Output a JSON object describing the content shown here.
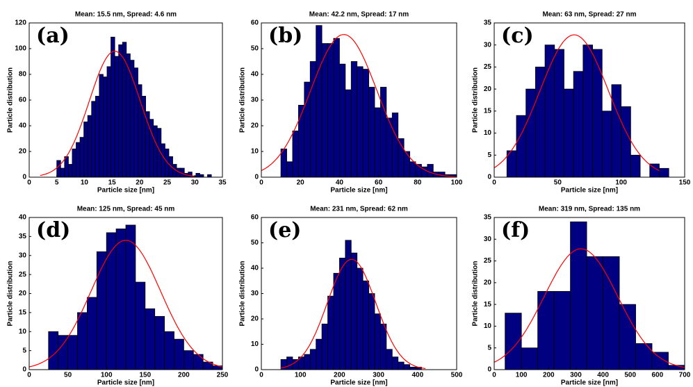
{
  "chart_data": [
    {
      "type": "histogram",
      "title": "Mean: 15.5 nm, Spread: 4.6 nm",
      "annotation": "(a)",
      "x_label": "Particle size [nm]",
      "y_label": "Particle distribution",
      "color": "#000080",
      "bins": [
        5,
        5.7,
        6.4,
        7.1,
        7.8,
        8.5,
        9.2,
        9.9,
        10.6,
        11.3,
        12,
        12.7,
        13.4,
        14.1,
        14.8,
        15.5,
        16.2,
        16.9,
        17.6,
        18.3,
        19,
        19.7,
        20.4,
        21.1,
        21.8,
        22.5,
        23.2,
        23.9,
        24.6,
        25.3,
        26,
        26.7,
        27.4,
        28.1,
        28.8,
        29.5,
        30.2,
        30.9,
        31.6,
        32.3,
        33
      ],
      "counts": [
        13,
        7,
        16,
        10,
        22,
        27,
        31,
        43,
        48,
        59,
        63,
        80,
        78,
        86,
        109,
        94,
        103,
        105,
        96,
        91,
        85,
        72,
        63,
        51,
        45,
        40,
        38,
        26,
        22,
        16,
        10,
        7,
        7,
        3,
        4,
        1,
        3,
        2,
        0,
        2
      ],
      "fit": {
        "mean": 15.5,
        "spread": 4.6,
        "peak": 98,
        "range": [
          2,
          30
        ],
        "color": "#ff0000"
      },
      "xlim": [
        0,
        35
      ],
      "xticks": [
        0,
        5,
        10,
        15,
        20,
        25,
        30,
        35
      ],
      "ylim": [
        0,
        120
      ],
      "yticks": [
        0,
        20,
        40,
        60,
        80,
        100,
        120
      ]
    },
    {
      "type": "histogram",
      "title": "Mean: 42.2 nm, Spread: 17 nm",
      "annotation": "(b)",
      "x_label": "Particle size [nm]",
      "y_label": "Particle distribution",
      "color": "#000080",
      "bins": [
        10,
        13,
        16,
        19,
        22,
        25,
        28,
        31,
        34,
        37,
        40,
        43,
        46,
        49,
        52,
        55,
        58,
        61,
        64,
        67,
        70,
        73,
        76,
        79,
        82,
        85,
        88,
        91,
        94,
        97,
        100
      ],
      "counts": [
        11,
        6,
        18,
        28,
        37,
        45,
        59,
        52,
        52,
        54,
        44,
        34,
        45,
        43,
        42,
        35,
        27,
        35,
        23,
        25,
        15,
        10,
        6,
        5,
        4,
        5,
        2,
        2,
        1,
        1
      ],
      "fit": {
        "mean": 42.2,
        "spread": 17,
        "peak": 55.5,
        "range": [
          0,
          100
        ],
        "color": "#ff0000"
      },
      "xlim": [
        0,
        100
      ],
      "xticks": [
        0,
        20,
        40,
        60,
        80,
        100
      ],
      "ylim": [
        0,
        60
      ],
      "yticks": [
        0,
        10,
        20,
        30,
        40,
        50,
        60
      ]
    },
    {
      "type": "histogram",
      "title": "Mean: 63 nm, Spread: 27 nm",
      "annotation": "(c)",
      "x_label": "Particle size [nm]",
      "y_label": "Particle distribution",
      "color": "#000080",
      "bins": [
        10,
        17.5,
        25,
        32.5,
        40,
        47.5,
        55,
        62.5,
        70,
        77.5,
        85,
        92.5,
        100,
        107.5,
        115,
        122.5,
        130,
        137.5
      ],
      "counts": [
        6,
        14,
        20,
        25,
        30,
        29,
        20,
        24,
        30,
        29,
        15,
        21,
        16,
        5,
        0,
        3,
        2
      ],
      "fit": {
        "mean": 63,
        "spread": 27,
        "peak": 32.3,
        "range": [
          0,
          130
        ],
        "color": "#ff0000"
      },
      "xlim": [
        0,
        150
      ],
      "xticks": [
        0,
        50,
        100,
        150
      ],
      "ylim": [
        0,
        35
      ],
      "yticks": [
        0,
        5,
        10,
        15,
        20,
        25,
        30,
        35
      ]
    },
    {
      "type": "histogram",
      "title": "Mean: 125 nm, Spread: 45 nm",
      "annotation": "(d)",
      "x_label": "Particle size [nm]",
      "y_label": "Particle distribution",
      "color": "#000080",
      "bins": [
        25,
        37.5,
        50,
        62.5,
        75,
        87.5,
        100,
        112.5,
        125,
        137.5,
        150,
        162.5,
        175,
        187.5,
        200,
        212.5,
        225,
        237.5,
        250
      ],
      "counts": [
        10,
        9,
        9,
        15,
        19,
        31,
        36,
        37,
        38,
        23,
        16,
        14,
        10,
        8,
        5,
        4,
        2,
        1
      ],
      "fit": {
        "mean": 125,
        "spread": 45,
        "peak": 34,
        "range": [
          0,
          250
        ],
        "color": "#ff0000"
      },
      "xlim": [
        0,
        250
      ],
      "xticks": [
        0,
        50,
        100,
        150,
        200,
        250
      ],
      "ylim": [
        0,
        40
      ],
      "yticks": [
        0,
        5,
        10,
        15,
        20,
        25,
        30,
        35,
        40
      ]
    },
    {
      "type": "histogram",
      "title": "Mean: 231 nm, Spread: 62 nm",
      "annotation": "(e)",
      "x_label": "Particle size [nm]",
      "y_label": "Particle distribution",
      "color": "#000080",
      "bins": [
        50,
        65,
        80,
        95,
        110,
        125,
        140,
        155,
        170,
        185,
        200,
        215,
        230,
        245,
        260,
        275,
        290,
        305,
        320,
        335,
        350,
        365,
        380,
        395,
        410
      ],
      "counts": [
        4,
        5,
        4,
        5,
        6,
        8,
        12,
        18,
        29,
        38,
        44,
        51,
        46,
        40,
        35,
        30,
        22,
        18,
        8,
        5,
        3,
        2,
        1,
        1
      ],
      "fit": {
        "mean": 231,
        "spread": 62,
        "peak": 43.5,
        "range": [
          50,
          420
        ],
        "color": "#ff0000"
      },
      "xlim": [
        0,
        500
      ],
      "xticks": [
        0,
        100,
        200,
        300,
        400,
        500
      ],
      "ylim": [
        0,
        60
      ],
      "yticks": [
        0,
        10,
        20,
        30,
        40,
        50,
        60
      ]
    },
    {
      "type": "histogram",
      "title": "Mean: 319 nm, Spread: 135 nm",
      "annotation": "(f)",
      "x_label": "Particle size [nm]",
      "y_label": "Particle distribution",
      "color": "#000080",
      "bins": [
        40,
        100,
        160,
        220,
        280,
        340,
        400,
        460,
        520,
        580,
        640,
        700
      ],
      "counts": [
        13,
        5,
        18,
        18,
        34,
        26,
        26,
        15,
        6,
        4,
        1
      ],
      "fit": {
        "mean": 319,
        "spread": 135,
        "peak": 27.8,
        "range": [
          0,
          700
        ],
        "color": "#ff0000"
      },
      "xlim": [
        0,
        700
      ],
      "xticks": [
        0,
        100,
        200,
        300,
        400,
        500,
        600,
        700
      ],
      "ylim": [
        0,
        35
      ],
      "yticks": [
        0,
        5,
        10,
        15,
        20,
        25,
        30,
        35
      ]
    }
  ]
}
